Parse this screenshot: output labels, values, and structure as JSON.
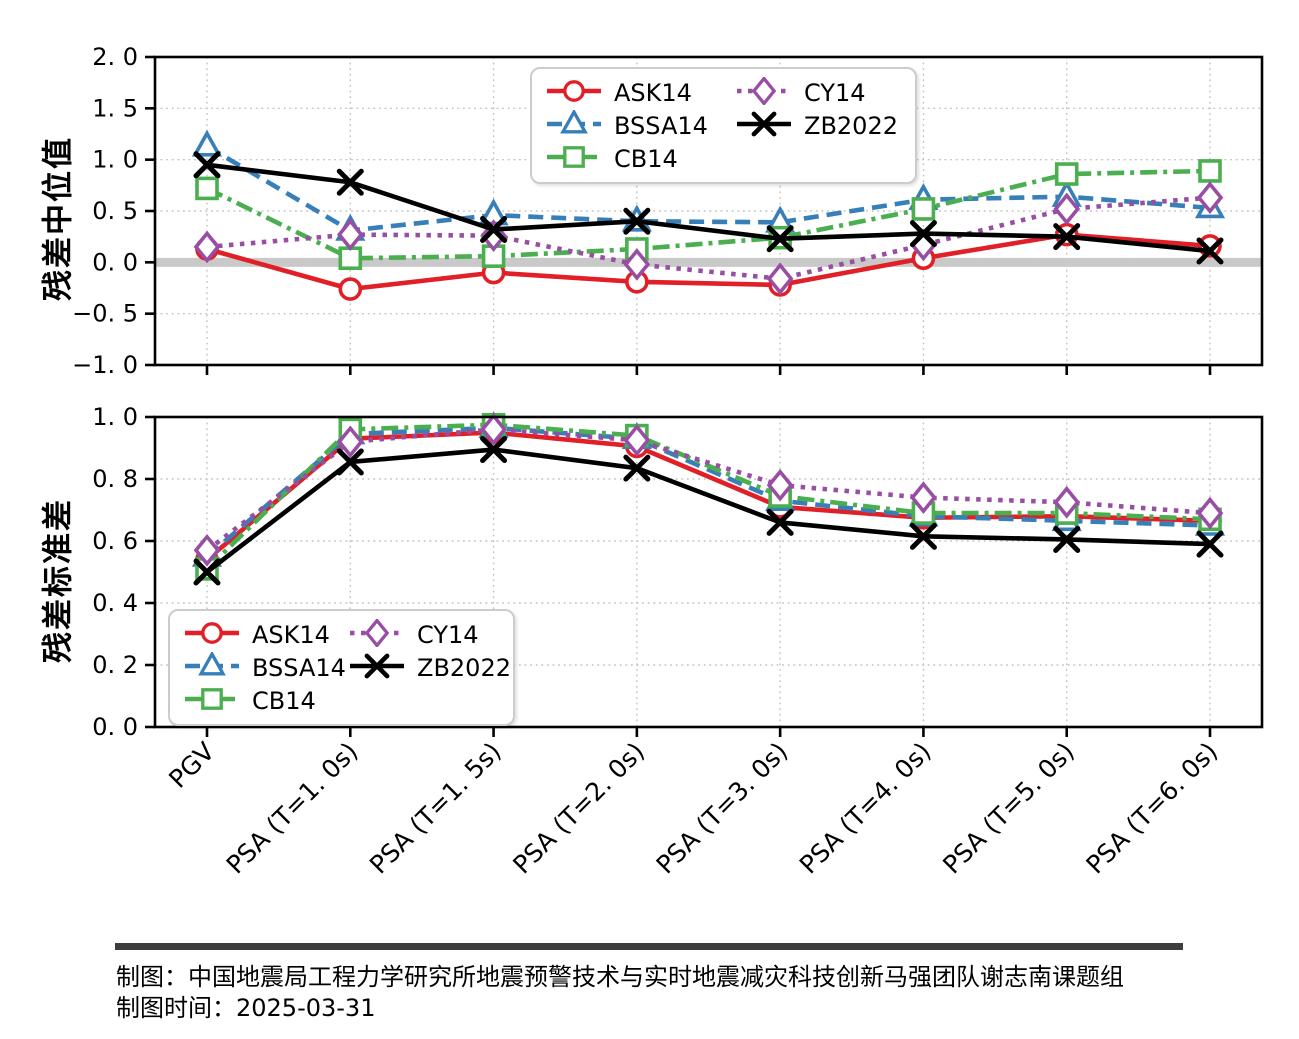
{
  "footer": {
    "line1": "制图：中国地震局工程力学研究所地震预警技术与实时地震减灾科技创新马强团队谢志南课题组",
    "line2": "制图时间：2025-03-31"
  },
  "chart_data": [
    {
      "type": "line",
      "title": "",
      "ylabel": "残差中位值",
      "xlabel": "",
      "ylim": [
        -1.0,
        2.0
      ],
      "yticks": [
        2.0,
        1.5,
        1.0,
        0.5,
        0.0,
        -0.5,
        -1.0
      ],
      "ytick_labels": [
        "2. 0",
        "1. 5",
        "1. 0",
        "0. 5",
        "0. 0",
        "−0. 5",
        "−1. 0"
      ],
      "grid": "dotted",
      "zero_band": true,
      "zero_band_color": "#c9c9c9",
      "legend_position": "upper right",
      "categories": [
        "PGV",
        "PSA (T=1. 0s)",
        "PSA (T=1. 5s)",
        "PSA (T=2. 0s)",
        "PSA (T=3. 0s)",
        "PSA (T=4. 0s)",
        "PSA (T=5. 0s)",
        "PSA (T=6. 0s)"
      ],
      "series": [
        {
          "name": "ASK14",
          "color": "#e11f26",
          "linestyle": "solid",
          "marker": "circle",
          "values": [
            0.13,
            -0.26,
            -0.1,
            -0.19,
            -0.22,
            0.04,
            0.27,
            0.16
          ]
        },
        {
          "name": "BSSA14",
          "color": "#377fb8",
          "linestyle": "dashed",
          "marker": "triangle",
          "values": [
            1.13,
            0.31,
            0.46,
            0.4,
            0.39,
            0.61,
            0.64,
            0.53
          ]
        },
        {
          "name": "CB14",
          "color": "#4bae4f",
          "linestyle": "dashdot",
          "marker": "square",
          "values": [
            0.72,
            0.04,
            0.06,
            0.13,
            0.24,
            0.52,
            0.86,
            0.89
          ]
        },
        {
          "name": "CY14",
          "color": "#984ea3",
          "linestyle": "dotted",
          "marker": "diamond",
          "values": [
            0.15,
            0.27,
            0.26,
            -0.02,
            -0.16,
            0.17,
            0.52,
            0.63
          ]
        },
        {
          "name": "ZB2022",
          "color": "#000000",
          "linestyle": "solid",
          "marker": "x",
          "values": [
            0.95,
            0.78,
            0.32,
            0.4,
            0.23,
            0.28,
            0.25,
            0.11
          ]
        }
      ]
    },
    {
      "type": "line",
      "title": "",
      "ylabel": "残差标准差",
      "xlabel": "",
      "ylim": [
        0.0,
        1.0
      ],
      "yticks": [
        1.0,
        0.8,
        0.6,
        0.4,
        0.2,
        0.0
      ],
      "ytick_labels": [
        "1. 0",
        "0. 8",
        "0. 6",
        "0. 4",
        "0. 2",
        "0. 0"
      ],
      "grid": "dotted",
      "zero_band": false,
      "legend_position": "lower left",
      "categories": [
        "PGV",
        "PSA (T=1. 0s)",
        "PSA (T=1. 5s)",
        "PSA (T=2. 0s)",
        "PSA (T=3. 0s)",
        "PSA (T=4. 0s)",
        "PSA (T=5. 0s)",
        "PSA (T=6. 0s)"
      ],
      "series": [
        {
          "name": "ASK14",
          "color": "#e11f26",
          "linestyle": "solid",
          "marker": "circle",
          "values": [
            0.54,
            0.93,
            0.95,
            0.905,
            0.71,
            0.675,
            0.68,
            0.665
          ]
        },
        {
          "name": "BSSA14",
          "color": "#377fb8",
          "linestyle": "dashed",
          "marker": "triangle",
          "values": [
            0.55,
            0.945,
            0.965,
            0.93,
            0.73,
            0.68,
            0.665,
            0.65
          ]
        },
        {
          "name": "CB14",
          "color": "#4bae4f",
          "linestyle": "dashdot",
          "marker": "square",
          "values": [
            0.51,
            0.96,
            0.975,
            0.94,
            0.745,
            0.69,
            0.69,
            0.67
          ]
        },
        {
          "name": "CY14",
          "color": "#984ea3",
          "linestyle": "dotted",
          "marker": "diamond",
          "values": [
            0.57,
            0.92,
            0.96,
            0.925,
            0.78,
            0.74,
            0.725,
            0.69
          ]
        },
        {
          "name": "ZB2022",
          "color": "#000000",
          "linestyle": "solid",
          "marker": "x",
          "values": [
            0.5,
            0.855,
            0.895,
            0.835,
            0.66,
            0.615,
            0.605,
            0.59
          ]
        }
      ]
    }
  ],
  "style": {
    "grid_color": "#c3c3c3",
    "spine_color": "#000000",
    "background": "#ffffff"
  }
}
